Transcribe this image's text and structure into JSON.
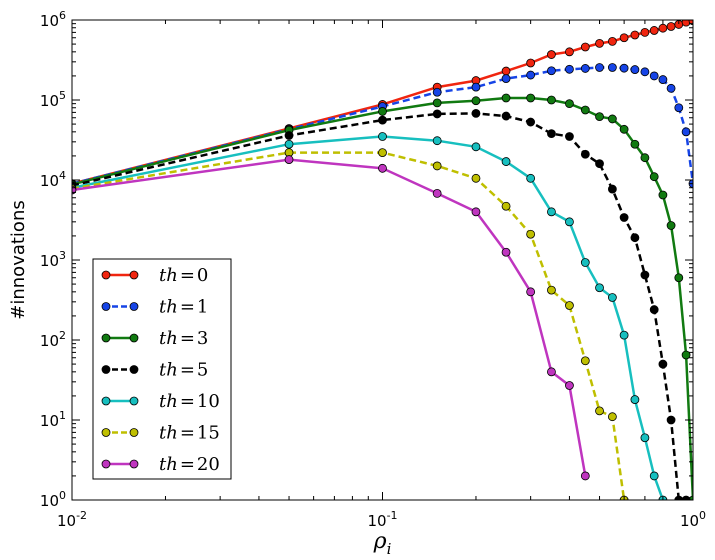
{
  "chart_data": {
    "type": "line",
    "xscale": "log",
    "yscale": "log",
    "xlim": [
      0.01,
      1
    ],
    "ylim": [
      1,
      1000000
    ],
    "xlabel": "ρ",
    "xlabel_sub": "i",
    "ylabel": "#innovations",
    "legend_position": "lower-left",
    "x_ticks": [
      {
        "value": 0.01,
        "base": "10",
        "exp": "-2"
      },
      {
        "value": 0.1,
        "base": "10",
        "exp": "-1"
      },
      {
        "value": 1,
        "base": "10",
        "exp": "0"
      }
    ],
    "y_ticks": [
      {
        "value": 1,
        "base": "10",
        "exp": "0"
      },
      {
        "value": 10,
        "base": "10",
        "exp": "1"
      },
      {
        "value": 100,
        "base": "10",
        "exp": "2"
      },
      {
        "value": 1000,
        "base": "10",
        "exp": "3"
      },
      {
        "value": 10000,
        "base": "10",
        "exp": "4"
      },
      {
        "value": 100000,
        "base": "10",
        "exp": "5"
      },
      {
        "value": 1000000,
        "base": "10",
        "exp": "6"
      }
    ],
    "series": [
      {
        "name": "th = 0",
        "label_var": "th",
        "label_val": "0",
        "color": "#f0250f",
        "dashed": false,
        "x": [
          0.01,
          0.05,
          0.1,
          0.15,
          0.2,
          0.25,
          0.3,
          0.35,
          0.4,
          0.45,
          0.5,
          0.55,
          0.6,
          0.65,
          0.7,
          0.75,
          0.8,
          0.85,
          0.9,
          0.95,
          1.0
        ],
        "y": [
          9000,
          44000,
          88000,
          145000,
          175000,
          230000,
          290000,
          370000,
          400000,
          460000,
          510000,
          540000,
          600000,
          650000,
          700000,
          740000,
          790000,
          830000,
          880000,
          940000,
          980000
        ]
      },
      {
        "name": "th = 1",
        "label_var": "th",
        "label_val": "1",
        "color": "#1644e6",
        "dashed": true,
        "x": [
          0.01,
          0.05,
          0.1,
          0.15,
          0.2,
          0.25,
          0.3,
          0.35,
          0.4,
          0.45,
          0.5,
          0.55,
          0.6,
          0.65,
          0.7,
          0.75,
          0.8,
          0.85,
          0.9,
          0.95,
          1.0
        ],
        "y": [
          9000,
          43000,
          83000,
          125000,
          145000,
          185000,
          205000,
          232000,
          242000,
          248000,
          255000,
          255000,
          250000,
          240000,
          225000,
          200000,
          180000,
          140000,
          80000,
          40000,
          9000
        ]
      },
      {
        "name": "th = 3",
        "label_var": "th",
        "label_val": "3",
        "color": "#117a11",
        "dashed": false,
        "x": [
          0.01,
          0.05,
          0.1,
          0.15,
          0.2,
          0.25,
          0.3,
          0.35,
          0.4,
          0.45,
          0.5,
          0.55,
          0.6,
          0.65,
          0.7,
          0.75,
          0.8,
          0.85,
          0.9,
          0.95,
          1.0
        ],
        "y": [
          8800,
          42000,
          72000,
          92000,
          98000,
          106000,
          106000,
          100000,
          90000,
          75000,
          62000,
          58000,
          43000,
          28000,
          19000,
          11000,
          6500,
          2700,
          600,
          65,
          1
        ]
      },
      {
        "name": "th = 5",
        "label_var": "th",
        "label_val": "5",
        "color": "#000000",
        "dashed": true,
        "x": [
          0.01,
          0.05,
          0.1,
          0.15,
          0.2,
          0.25,
          0.3,
          0.35,
          0.4,
          0.45,
          0.5,
          0.55,
          0.6,
          0.65,
          0.7,
          0.75,
          0.8,
          0.85,
          0.9,
          0.95
        ],
        "y": [
          8500,
          36000,
          56000,
          67000,
          68000,
          63000,
          53000,
          38000,
          35000,
          21000,
          16000,
          7700,
          3400,
          1900,
          650,
          240,
          50,
          10,
          1,
          1
        ]
      },
      {
        "name": "th = 10",
        "label_var": "th",
        "label_val": "10",
        "color": "#17bfbf",
        "dashed": false,
        "x": [
          0.01,
          0.05,
          0.1,
          0.15,
          0.2,
          0.25,
          0.3,
          0.35,
          0.4,
          0.45,
          0.5,
          0.55,
          0.6,
          0.65,
          0.7,
          0.75,
          0.8
        ],
        "y": [
          8000,
          28000,
          35000,
          31000,
          26000,
          17000,
          10500,
          4000,
          3000,
          930,
          450,
          340,
          115,
          18,
          6,
          2,
          1
        ]
      },
      {
        "name": "th = 15",
        "label_var": "th",
        "label_val": "15",
        "color": "#bfbf00",
        "dashed": true,
        "x": [
          0.01,
          0.05,
          0.1,
          0.15,
          0.2,
          0.25,
          0.3,
          0.35,
          0.4,
          0.45,
          0.5,
          0.55,
          0.6
        ],
        "y": [
          7800,
          22000,
          22000,
          15000,
          10500,
          4700,
          2100,
          420,
          270,
          55,
          13,
          11,
          1
        ]
      },
      {
        "name": "th = 20",
        "label_var": "th",
        "label_val": "20",
        "color": "#bf35bf",
        "dashed": false,
        "x": [
          0.01,
          0.05,
          0.1,
          0.15,
          0.2,
          0.25,
          0.3,
          0.35,
          0.4,
          0.45
        ],
        "y": [
          7500,
          18000,
          14000,
          6800,
          4000,
          1250,
          400,
          40,
          27,
          2
        ]
      }
    ]
  }
}
